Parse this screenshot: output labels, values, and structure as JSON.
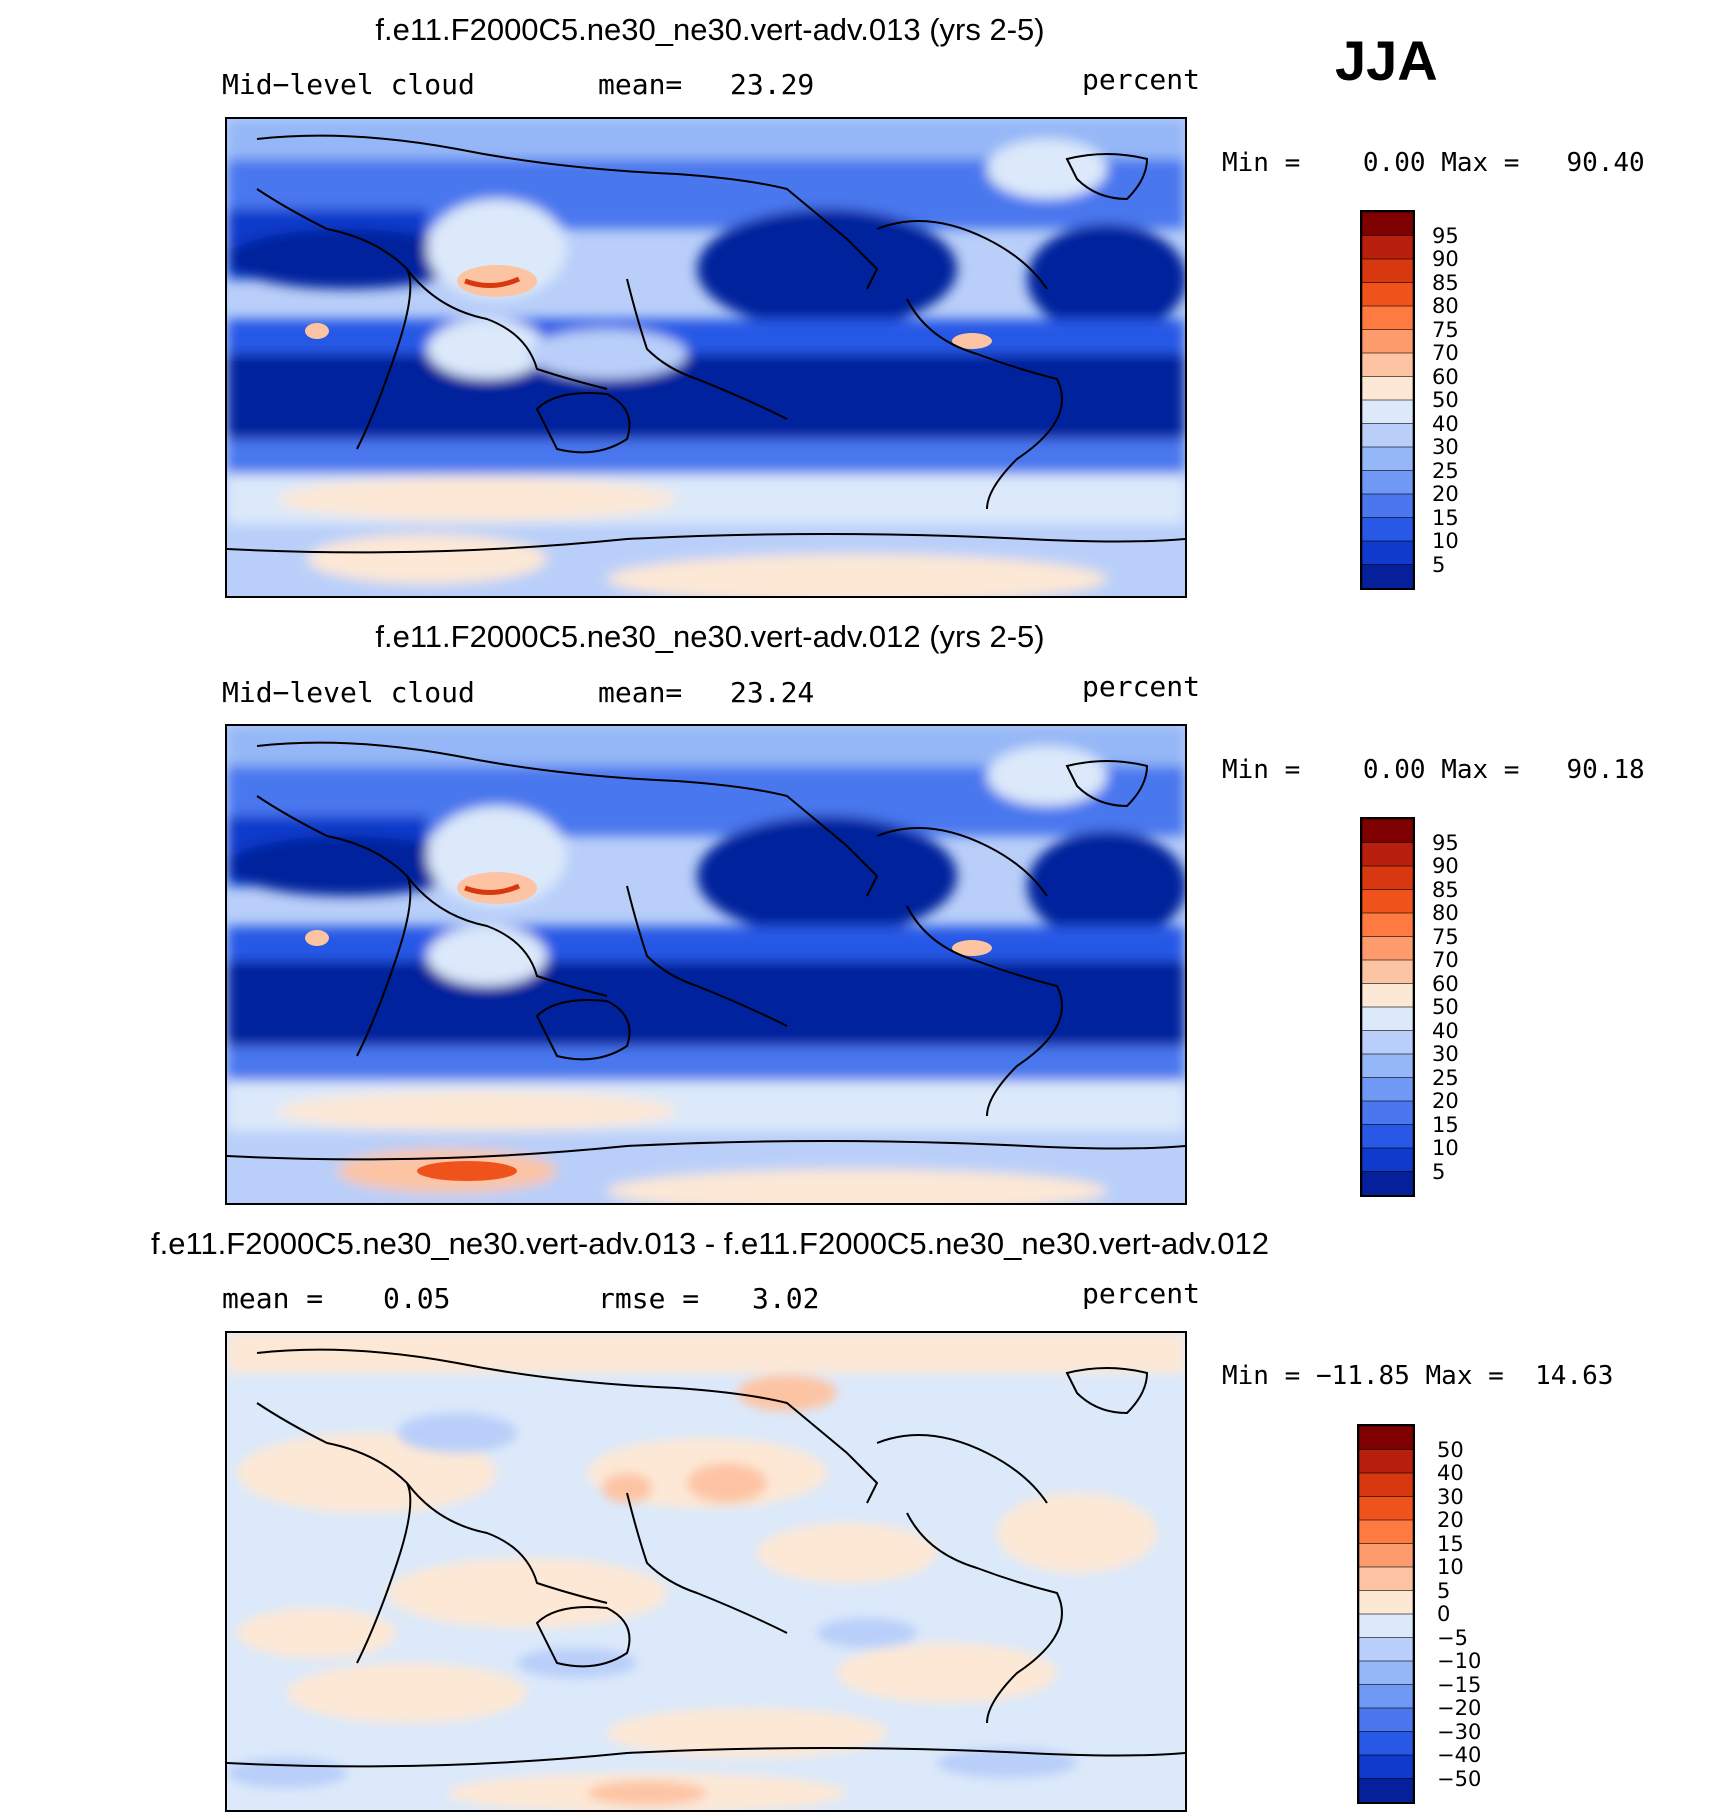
{
  "season": "JJA",
  "panels": [
    {
      "title": "f.e11.F2000C5.ne30_ne30.vert-adv.013 (yrs 2-5)",
      "left_label": "Mid−level cloud",
      "stat1_label": "mean=",
      "stat1_value": "23.29",
      "units": "percent",
      "min_label": "Min =",
      "min_value": "0.00",
      "max_label": "Max =",
      "max_value": "90.40",
      "colorbar_labels": [
        "95",
        "90",
        "85",
        "80",
        "75",
        "70",
        "60",
        "50",
        "40",
        "30",
        "25",
        "20",
        "15",
        "10",
        "5"
      ],
      "colorbar_colors": [
        "#7f0000",
        "#b81f0c",
        "#d8380f",
        "#f0521b",
        "#ff7a40",
        "#fd9b6c",
        "#fdc4a4",
        "#fde8d6",
        "#dce9fa",
        "#b9cff9",
        "#95b7f7",
        "#6f99f4",
        "#4a77ee",
        "#2858e6",
        "#0f3acb",
        "#06209c"
      ],
      "legend_text": []
    },
    {
      "title": "f.e11.F2000C5.ne30_ne30.vert-adv.012 (yrs 2-5)",
      "left_label": "Mid−level cloud",
      "stat1_label": "mean=",
      "stat1_value": "23.24",
      "units": "percent",
      "min_label": "Min =",
      "min_value": "0.00",
      "max_label": "Max =",
      "max_value": "90.18",
      "colorbar_labels": [
        "95",
        "90",
        "85",
        "80",
        "75",
        "70",
        "60",
        "50",
        "40",
        "30",
        "25",
        "20",
        "15",
        "10",
        "5"
      ],
      "colorbar_colors": [
        "#7f0000",
        "#b81f0c",
        "#d8380f",
        "#f0521b",
        "#ff7a40",
        "#fd9b6c",
        "#fdc4a4",
        "#fde8d6",
        "#dce9fa",
        "#b9cff9",
        "#95b7f7",
        "#6f99f4",
        "#4a77ee",
        "#2858e6",
        "#0f3acb",
        "#06209c"
      ]
    },
    {
      "title": "f.e11.F2000C5.ne30_ne30.vert-adv.013 - f.e11.F2000C5.ne30_ne30.vert-adv.012",
      "left_label": "mean =",
      "left_value": "0.05",
      "stat1_label": "rmse =",
      "stat1_value": "3.02",
      "units": "percent",
      "min_label": "Min =",
      "min_value": "−11.85",
      "max_label": "Max =",
      "max_value": "14.63",
      "colorbar_labels": [
        "50",
        "40",
        "30",
        "20",
        "15",
        "10",
        "5",
        "0",
        "−5",
        "−10",
        "−15",
        "−20",
        "−30",
        "−40",
        "−50"
      ],
      "colorbar_colors": [
        "#7f0000",
        "#b81f0c",
        "#d8380f",
        "#f0521b",
        "#ff7a40",
        "#fd9b6c",
        "#fdc4a4",
        "#fde8d6",
        "#dce9fa",
        "#b9cff9",
        "#95b7f7",
        "#6f99f4",
        "#4a77ee",
        "#2858e6",
        "#0f3acb",
        "#06209c"
      ]
    }
  ]
}
